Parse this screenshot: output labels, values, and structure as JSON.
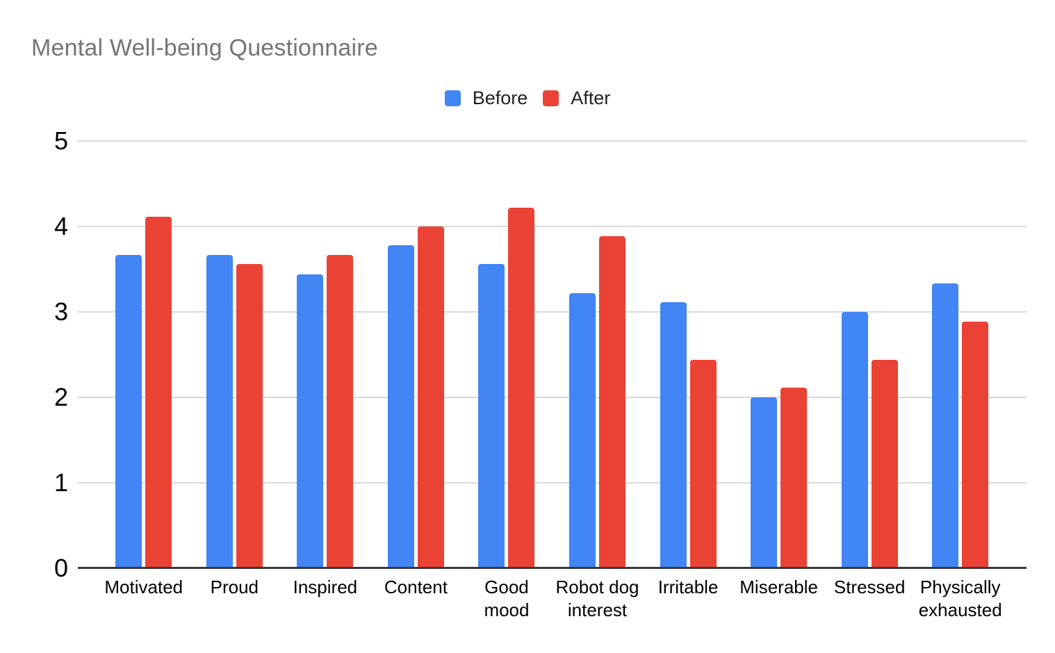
{
  "chart_data": {
    "type": "bar",
    "title": "Mental Well-being Questionnaire",
    "xlabel": "",
    "ylabel": "",
    "ylim": [
      0,
      5
    ],
    "yticks": [
      0,
      1,
      2,
      3,
      4,
      5
    ],
    "grid": true,
    "legend_position": "top",
    "categories": [
      "Motivated",
      "Proud",
      "Inspired",
      "Content",
      "Good mood",
      "Robot dog interest",
      "Irritable",
      "Miserable",
      "Stressed",
      "Physically exhausted"
    ],
    "category_label_lines": [
      [
        "Motivated"
      ],
      [
        "Proud"
      ],
      [
        "Inspired"
      ],
      [
        "Content"
      ],
      [
        "Good",
        "mood"
      ],
      [
        "Robot dog",
        "interest"
      ],
      [
        "Irritable"
      ],
      [
        "Miserable"
      ],
      [
        "Stressed"
      ],
      [
        "Physically",
        "exhausted"
      ]
    ],
    "series": [
      {
        "name": "Before",
        "color": "#4285F4",
        "values": [
          3.67,
          3.67,
          3.44,
          3.78,
          3.56,
          3.22,
          3.11,
          2.0,
          3.0,
          3.33
        ]
      },
      {
        "name": "After",
        "color": "#EA4335",
        "values": [
          4.11,
          3.56,
          3.67,
          4.0,
          4.22,
          3.89,
          2.44,
          2.11,
          2.44,
          2.89
        ]
      }
    ],
    "colors": {
      "title_text": "#757575",
      "axis_text": "#000000",
      "gridline": "#d9d9d9",
      "baseline": "#383838",
      "background": "#ffffff"
    }
  }
}
